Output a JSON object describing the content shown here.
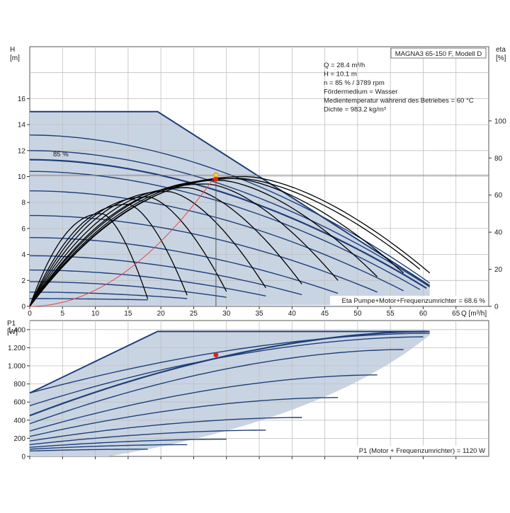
{
  "chart_data": [
    {
      "type": "line",
      "xlabel": "Q [m³/h]",
      "ylabel": "H\n[m]",
      "y2label": "eta\n[%]",
      "xlim": [
        0,
        70
      ],
      "ylim": [
        0,
        20
      ],
      "y2lim": [
        0,
        140
      ],
      "xticks": [
        0,
        5,
        10,
        15,
        20,
        25,
        30,
        35,
        40,
        45,
        50,
        55,
        60,
        65
      ],
      "yticks": [
        0,
        2,
        4,
        6,
        8,
        10,
        12,
        14,
        16
      ],
      "y2ticks": [
        0,
        20,
        40,
        60,
        80,
        100
      ],
      "grid": true,
      "model_box": "MAGNA3 65-150 F, Modell D",
      "info_lines": [
        "Q = 28.4 m³/h",
        "H = 10.1 m",
        "n = 85 % / 3789 rpm",
        "Fördermedium = Wasser",
        "Medientemperatur während des Betriebes = 60 °C",
        "Dichte = 983.2 kg/m³"
      ],
      "curve_label": "85 %",
      "eta_footer": "Eta Pumpe+Motor+Frequenzumrichter = 68.6 %",
      "envelope": {
        "hmax": 15.0,
        "q_flat_end": 19.5,
        "q_max": 61.0,
        "h_end": 1.6,
        "q_min_end": 61.0
      },
      "qh_curves": [
        {
          "h0": 13.2,
          "qmax": 61.0,
          "hend": 1.8
        },
        {
          "h0": 12.0,
          "qmax": 61.0,
          "hend": 1.5
        },
        {
          "h0": 11.3,
          "qmax": 60.5,
          "hend": 1.4,
          "highlight": true
        },
        {
          "h0": 10.4,
          "qmax": 59.5,
          "hend": 1.3
        },
        {
          "h0": 8.9,
          "qmax": 57.0,
          "hend": 1.2
        },
        {
          "h0": 7.0,
          "qmax": 53.0,
          "hend": 1.1
        },
        {
          "h0": 5.3,
          "qmax": 47.0,
          "hend": 1.0
        },
        {
          "h0": 3.9,
          "qmax": 41.5,
          "hend": 0.9
        },
        {
          "h0": 2.8,
          "qmax": 36.0,
          "hend": 0.8
        },
        {
          "h0": 1.9,
          "qmax": 30.0,
          "hend": 0.7
        },
        {
          "h0": 1.1,
          "qmax": 24.0,
          "hend": 0.6
        },
        {
          "h0": 0.6,
          "qmax": 18.0,
          "hend": 0.5
        }
      ],
      "eta_curves": [
        {
          "qpeak": 33.0,
          "peak": 70,
          "qend": 61.0,
          "end": 18
        },
        {
          "qpeak": 32.0,
          "peak": 69,
          "qend": 59.5,
          "end": 20
        },
        {
          "qpeak": 31.0,
          "peak": 69,
          "qend": 57.0,
          "end": 18
        },
        {
          "qpeak": 29.0,
          "peak": 68,
          "qend": 53.0,
          "end": 16
        },
        {
          "qpeak": 27.0,
          "peak": 66,
          "qend": 47.0,
          "end": 14
        },
        {
          "qpeak": 24.0,
          "peak": 64,
          "qend": 41.5,
          "end": 12
        },
        {
          "qpeak": 21.0,
          "peak": 62,
          "qend": 36.0,
          "end": 10
        },
        {
          "qpeak": 18.0,
          "peak": 59,
          "qend": 30.0,
          "end": 8
        },
        {
          "qpeak": 15.0,
          "peak": 55,
          "qend": 24.0,
          "end": 6
        },
        {
          "qpeak": 11.0,
          "peak": 50,
          "qend": 18.0,
          "end": 4
        }
      ],
      "system_curve": {
        "q": 28.4,
        "h": 10.1
      },
      "duty_point_head": {
        "q": 28.4,
        "h": 10.1
      },
      "duty_point_eta": {
        "q": 28.4,
        "eta": 68.6
      }
    },
    {
      "type": "line",
      "xlabel": "",
      "ylabel": "P1\n[W]",
      "xlim": [
        0,
        70
      ],
      "ylim": [
        0,
        1500
      ],
      "yticks": [
        0,
        200,
        400,
        600,
        800,
        1000,
        1200,
        1400
      ],
      "ytick_labels": [
        "0",
        "200",
        "400",
        "600",
        "800",
        "1.000",
        "1.200",
        "1.400"
      ],
      "grid": true,
      "p1_footer": "P1 (Motor + Frequenzumrichter) = 1120 W",
      "envelope": {
        "q_start": 0,
        "p_start": 700,
        "q_flat": 19.5,
        "p_flat": 1380,
        "q_end": 61.0,
        "p_end": 1380
      },
      "p_curves": [
        {
          "q_end": 61.0,
          "p0": 700,
          "p1": 1360
        },
        {
          "q_end": 60.0,
          "p0": 560,
          "p1": 1320
        },
        {
          "q_end": 60.5,
          "p0": 450,
          "p1": 1380,
          "highlight": true
        },
        {
          "q_end": 57.0,
          "p0": 360,
          "p1": 1180
        },
        {
          "q_end": 53.0,
          "p0": 280,
          "p1": 900
        },
        {
          "q_end": 47.0,
          "p0": 220,
          "p1": 650
        },
        {
          "q_end": 41.5,
          "p0": 170,
          "p1": 430
        },
        {
          "q_end": 36.0,
          "p0": 130,
          "p1": 290
        },
        {
          "q_end": 30.0,
          "p0": 100,
          "p1": 190
        },
        {
          "q_end": 24.0,
          "p0": 80,
          "p1": 130
        },
        {
          "q_end": 18.0,
          "p0": 60,
          "p1": 80
        }
      ],
      "duty_point_p1": {
        "q": 28.4,
        "p": 1120
      }
    }
  ],
  "colors": {
    "fill": "#c9d4e3",
    "curve": "#1f3f79",
    "eta": "#000000",
    "system": "#e8463c",
    "grid": "#bfbfbf",
    "point_head": "#f4c84a",
    "point_red": "#e02418"
  }
}
